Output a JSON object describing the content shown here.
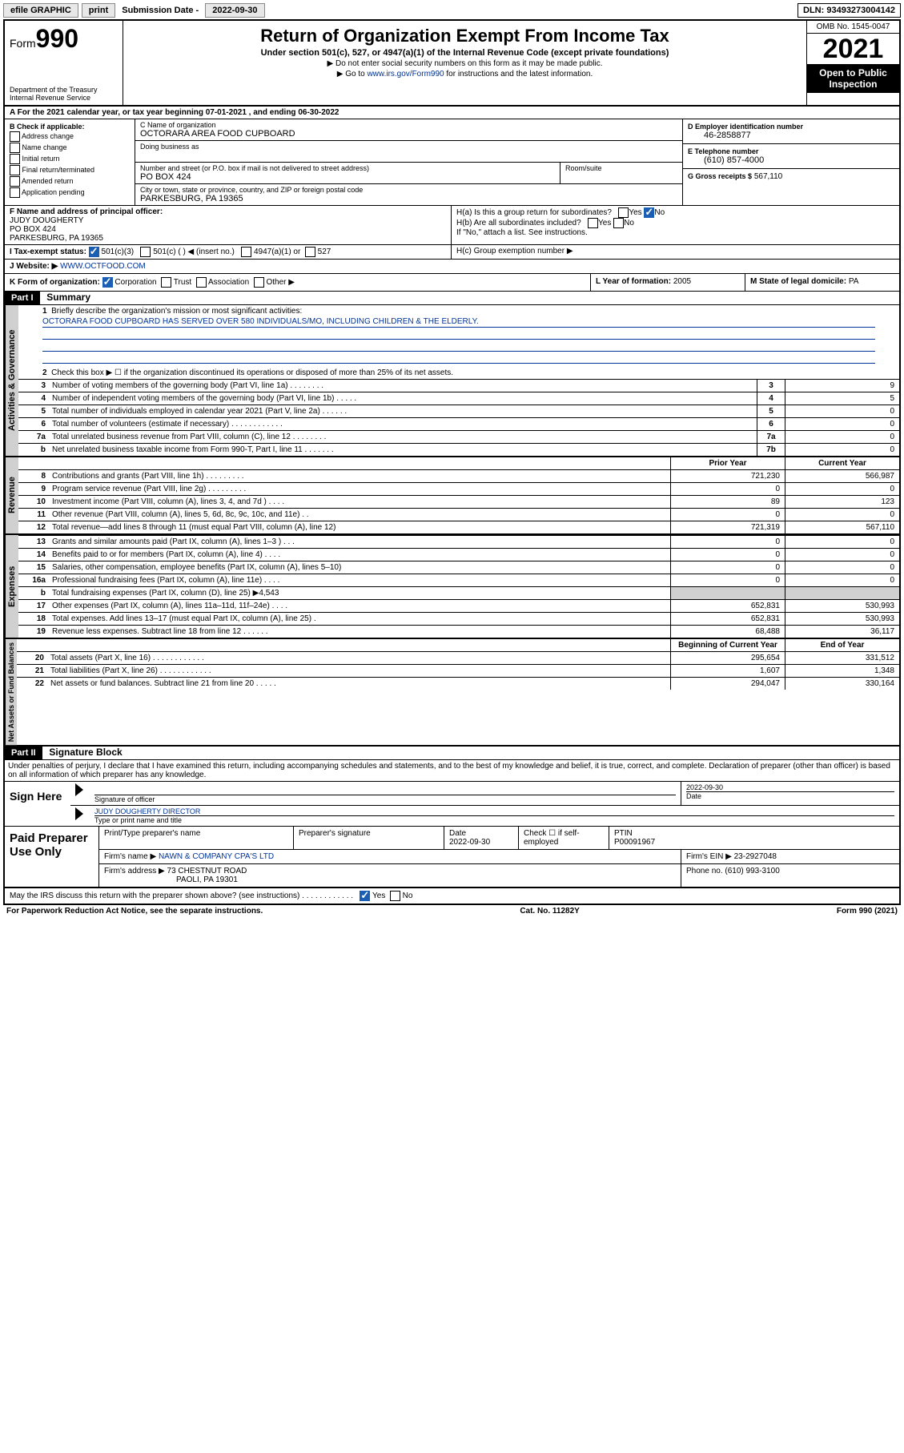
{
  "topbar": {
    "efile": "efile GRAPHIC",
    "print": "print",
    "subdate_label": "Submission Date -",
    "subdate": "2022-09-30",
    "dln_label": "DLN:",
    "dln": "93493273004142"
  },
  "header": {
    "form_prefix": "Form",
    "form_num": "990",
    "title": "Return of Organization Exempt From Income Tax",
    "sub": "Under section 501(c), 527, or 4947(a)(1) of the Internal Revenue Code (except private foundations)",
    "note1": "▶ Do not enter social security numbers on this form as it may be made public.",
    "note2_a": "▶ Go to ",
    "note2_link": "www.irs.gov/Form990",
    "note2_b": " for instructions and the latest information.",
    "dept": "Department of the Treasury",
    "irs": "Internal Revenue Service",
    "omb": "OMB No. 1545-0047",
    "year": "2021",
    "open1": "Open to Public",
    "open2": "Inspection"
  },
  "rowA": "A For the 2021 calendar year, or tax year beginning 07-01-2021   , and ending 06-30-2022",
  "colB": {
    "hdr": "B Check if applicable:",
    "opts": [
      "Address change",
      "Name change",
      "Initial return",
      "Final return/terminated",
      "Amended return",
      "Application pending"
    ]
  },
  "colC": {
    "name_lbl": "C Name of organization",
    "name": "OCTORARA AREA FOOD CUPBOARD",
    "dba_lbl": "Doing business as",
    "addr_lbl": "Number and street (or P.O. box if mail is not delivered to street address)",
    "room_lbl": "Room/suite",
    "addr": "PO BOX 424",
    "city_lbl": "City or town, state or province, country, and ZIP or foreign postal code",
    "city": "PARKESBURG, PA  19365"
  },
  "colD": {
    "d_lbl": "D Employer identification number",
    "d_val": "46-2858877",
    "e_lbl": "E Telephone number",
    "e_val": "(610) 857-4000",
    "g_lbl": "G Gross receipts $",
    "g_val": "567,110"
  },
  "rowF": {
    "f_lbl": "F Name and address of principal officer:",
    "f_name": "JUDY DOUGHERTY",
    "f_addr1": "PO BOX 424",
    "f_addr2": "PARKESBURG, PA  19365",
    "ha": "H(a)  Is this a group return for subordinates?",
    "hb": "H(b)  Are all subordinates included?",
    "hb_note": "If \"No,\" attach a list. See instructions.",
    "hc": "H(c)  Group exemption number ▶"
  },
  "rowI": {
    "label": "I    Tax-exempt status:",
    "opt1": "501(c)(3)",
    "opt2": "501(c) (   ) ◀ (insert no.)",
    "opt3": "4947(a)(1) or",
    "opt4": "527"
  },
  "rowJ": {
    "label": "J    Website: ▶",
    "val": "WWW.OCTFOOD.COM"
  },
  "rowK": {
    "k": "K Form of organization:",
    "k_opts": [
      "Corporation",
      "Trust",
      "Association",
      "Other ▶"
    ],
    "l_lbl": "L Year of formation:",
    "l_val": "2005",
    "m_lbl": "M State of legal domicile:",
    "m_val": "PA"
  },
  "part1": {
    "hdr": "Part I",
    "title": "Summary",
    "q1": "Briefly describe the organization's mission or most significant activities:",
    "q1_val": "OCTORARA FOOD CUPBOARD HAS SERVED OVER 580 INDIVIDUALS/MO, INCLUDING CHILDREN & THE ELDERLY.",
    "q2": "Check this box ▶ ☐  if the organization discontinued its operations or disposed of more than 25% of its net assets.",
    "lines_gov": [
      {
        "n": "3",
        "d": "Number of voting members of the governing body (Part VI, line 1a)   .    .    .    .    .    .    .    .",
        "b": "3",
        "v": "9"
      },
      {
        "n": "4",
        "d": "Number of independent voting members of the governing body (Part VI, line 1b)   .    .    .    .    .",
        "b": "4",
        "v": "5"
      },
      {
        "n": "5",
        "d": "Total number of individuals employed in calendar year 2021 (Part V, line 2a)   .    .    .    .    .    .",
        "b": "5",
        "v": "0"
      },
      {
        "n": "6",
        "d": "Total number of volunteers (estimate if necessary)   .    .    .    .    .    .    .    .    .    .    .    .",
        "b": "6",
        "v": "0"
      },
      {
        "n": "7a",
        "d": "Total unrelated business revenue from Part VIII, column (C), line 12   .    .    .    .    .    .    .    .",
        "b": "7a",
        "v": "0"
      },
      {
        "n": "b",
        "d": "Net unrelated business taxable income from Form 990-T, Part I, line 11   .    .    .    .    .    .    .",
        "b": "7b",
        "v": "0"
      }
    ],
    "col_prior": "Prior Year",
    "col_curr": "Current Year",
    "lines_rev": [
      {
        "n": "8",
        "d": "Contributions and grants (Part VIII, line 1h)   .    .    .    .    .    .    .    .    .",
        "p": "721,230",
        "c": "566,987"
      },
      {
        "n": "9",
        "d": "Program service revenue (Part VIII, line 2g)   .    .    .    .    .    .    .    .    .",
        "p": "0",
        "c": "0"
      },
      {
        "n": "10",
        "d": "Investment income (Part VIII, column (A), lines 3, 4, and 7d )    .    .    .    .",
        "p": "89",
        "c": "123"
      },
      {
        "n": "11",
        "d": "Other revenue (Part VIII, column (A), lines 5, 6d, 8c, 9c, 10c, and 11e)    .    .",
        "p": "0",
        "c": "0"
      },
      {
        "n": "12",
        "d": "Total revenue—add lines 8 through 11 (must equal Part VIII, column (A), line 12)",
        "p": "721,319",
        "c": "567,110"
      }
    ],
    "lines_exp": [
      {
        "n": "13",
        "d": "Grants and similar amounts paid (Part IX, column (A), lines 1–3 )   .    .    .",
        "p": "0",
        "c": "0"
      },
      {
        "n": "14",
        "d": "Benefits paid to or for members (Part IX, column (A), line 4)   .    .    .    .",
        "p": "0",
        "c": "0"
      },
      {
        "n": "15",
        "d": "Salaries, other compensation, employee benefits (Part IX, column (A), lines 5–10)",
        "p": "0",
        "c": "0"
      },
      {
        "n": "16a",
        "d": "Professional fundraising fees (Part IX, column (A), line 11e)   .    .    .    .",
        "p": "0",
        "c": "0"
      }
    ],
    "line16b": {
      "n": "b",
      "d": "Total fundraising expenses (Part IX, column (D), line 25) ▶4,543"
    },
    "lines_exp2": [
      {
        "n": "17",
        "d": "Other expenses (Part IX, column (A), lines 11a–11d, 11f–24e)   .    .    .    .",
        "p": "652,831",
        "c": "530,993"
      },
      {
        "n": "18",
        "d": "Total expenses. Add lines 13–17 (must equal Part IX, column (A), line 25)    .",
        "p": "652,831",
        "c": "530,993"
      },
      {
        "n": "19",
        "d": "Revenue less expenses. Subtract line 18 from line 12   .    .    .    .    .    .",
        "p": "68,488",
        "c": "36,117"
      }
    ],
    "col_begin": "Beginning of Current Year",
    "col_end": "End of Year",
    "lines_net": [
      {
        "n": "20",
        "d": "Total assets (Part X, line 16)   .    .    .    .    .    .    .    .    .    .    .    .",
        "p": "295,654",
        "c": "331,512"
      },
      {
        "n": "21",
        "d": "Total liabilities (Part X, line 26)   .    .    .    .    .    .    .    .    .    .    .    .",
        "p": "1,607",
        "c": "1,348"
      },
      {
        "n": "22",
        "d": "Net assets or fund balances. Subtract line 21 from line 20   .    .    .    .    .",
        "p": "294,047",
        "c": "330,164"
      }
    ]
  },
  "part2": {
    "hdr": "Part II",
    "title": "Signature Block",
    "penalty": "Under penalties of perjury, I declare that I have examined this return, including accompanying schedules and statements, and to the best of my knowledge and belief, it is true, correct, and complete. Declaration of preparer (other than officer) is based on all information of which preparer has any knowledge.",
    "sign_here": "Sign Here",
    "sig_officer": "Signature of officer",
    "sig_date_lbl": "Date",
    "sig_date": "2022-09-30",
    "sig_name": "JUDY DOUGHERTY  DIRECTOR",
    "sig_name_lbl": "Type or print name and title",
    "paid": "Paid Preparer Use Only",
    "p_name_lbl": "Print/Type preparer's name",
    "p_sig_lbl": "Preparer's signature",
    "p_date_lbl": "Date",
    "p_date": "2022-09-30",
    "p_check": "Check ☐ if self-employed",
    "p_ptin_lbl": "PTIN",
    "p_ptin": "P00091967",
    "firm_name_lbl": "Firm's name    ▶",
    "firm_name": "NAWN & COMPANY CPA'S LTD",
    "firm_ein_lbl": "Firm's EIN ▶",
    "firm_ein": "23-2927048",
    "firm_addr_lbl": "Firm's address ▶",
    "firm_addr1": "73 CHESTNUT ROAD",
    "firm_addr2": "PAOLI, PA  19301",
    "firm_phone_lbl": "Phone no.",
    "firm_phone": "(610) 993-3100",
    "may_irs": "May the IRS discuss this return with the preparer shown above? (see instructions)   .    .    .    .    .    .    .    .    .    .    .    ."
  },
  "footer": {
    "left": "For Paperwork Reduction Act Notice, see the separate instructions.",
    "mid": "Cat. No. 11282Y",
    "right": "Form 990 (2021)"
  },
  "side": {
    "gov": "Activities & Governance",
    "rev": "Revenue",
    "exp": "Expenses",
    "net": "Net Assets or Fund Balances"
  }
}
